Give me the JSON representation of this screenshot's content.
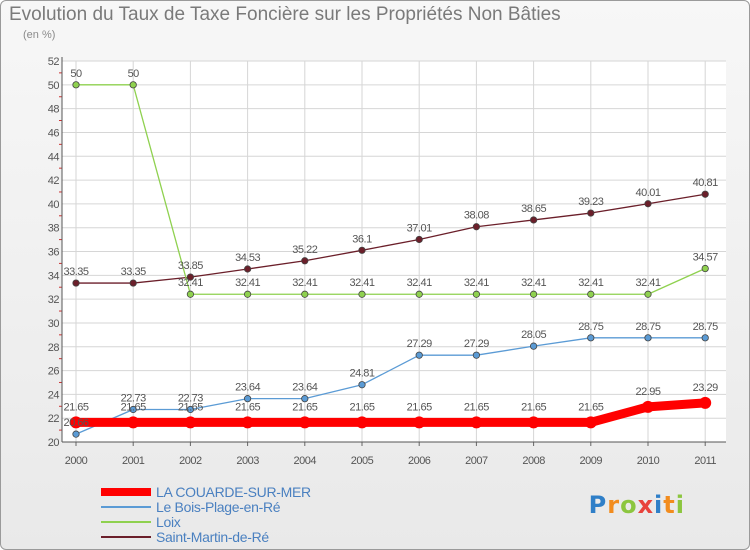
{
  "header": {
    "title": "Evolution du Taux de Taxe Foncière sur les Propriétés Non Bâties",
    "unit": "(en %)"
  },
  "logo": {
    "text": "Proxiti",
    "letters": [
      {
        "ch": "P",
        "color": "#2f7fc8"
      },
      {
        "ch": "r",
        "color": "#f28c1e"
      },
      {
        "ch": "o",
        "color": "#8cc63f"
      },
      {
        "ch": "x",
        "color": "#e8423c"
      },
      {
        "ch": "i",
        "color": "#2f7fc8"
      },
      {
        "ch": "t",
        "color": "#f28c1e"
      },
      {
        "ch": "i",
        "color": "#8cc63f"
      }
    ]
  },
  "chart_data": {
    "type": "line",
    "title": "Evolution du Taux de Taxe Foncière sur les Propriétés Non Bâties",
    "ylabel": "(en %)",
    "xlabel": "",
    "x": [
      "2000",
      "2001",
      "2002",
      "2003",
      "2004",
      "2005",
      "2006",
      "2007",
      "2008",
      "2009",
      "2010",
      "2011"
    ],
    "ylim": [
      20,
      52
    ],
    "yticks": [
      20,
      22,
      24,
      26,
      28,
      30,
      32,
      34,
      36,
      38,
      40,
      42,
      44,
      46,
      48,
      50,
      52
    ],
    "grid": true,
    "legend_position": "bottom-left",
    "series": [
      {
        "name": "LA COUARDE-SUR-MER",
        "color": "#ff0000",
        "values": [
          21.65,
          21.65,
          21.65,
          21.65,
          21.65,
          21.65,
          21.65,
          21.65,
          21.65,
          21.65,
          22.95,
          23.29
        ],
        "labels": [
          "21.65",
          "21.65",
          "21.65",
          "21.65",
          "21.65",
          "21.65",
          "21.65",
          "21.65",
          "21.65",
          "21.65",
          "22.95",
          "23.29"
        ]
      },
      {
        "name": "Le Bois-Plage-en-Ré",
        "color": "#5b9bd5",
        "values": [
          20.66,
          22.73,
          22.73,
          23.64,
          23.64,
          24.81,
          27.29,
          27.29,
          28.05,
          28.75,
          28.75,
          28.75
        ],
        "labels": [
          "20.66",
          "22.73",
          "22.73",
          "23.64",
          "23.64",
          "24.81",
          "27.29",
          "27.29",
          "28.05",
          "28.75",
          "28.75",
          "28.75"
        ]
      },
      {
        "name": "Loix",
        "color": "#8fd14f",
        "values": [
          50,
          50,
          32.41,
          32.41,
          32.41,
          32.41,
          32.41,
          32.41,
          32.41,
          32.41,
          32.41,
          34.57
        ],
        "labels": [
          "50",
          "50",
          "32.41",
          "32.41",
          "32.41",
          "32.41",
          "32.41",
          "32.41",
          "32.41",
          "32.41",
          "32.41",
          "34.57"
        ]
      },
      {
        "name": "Saint-Martin-de-Ré",
        "color": "#6b1f2a",
        "values": [
          33.35,
          33.35,
          33.85,
          34.53,
          35.22,
          36.1,
          37.01,
          38.08,
          38.65,
          39.23,
          40.01,
          40.81
        ],
        "labels": [
          "33.35",
          "33.35",
          "33.85",
          "34.53",
          "35.22",
          "36.1",
          "37.01",
          "38.08",
          "38.65",
          "39.23",
          "40.01",
          "40.81"
        ]
      }
    ]
  }
}
